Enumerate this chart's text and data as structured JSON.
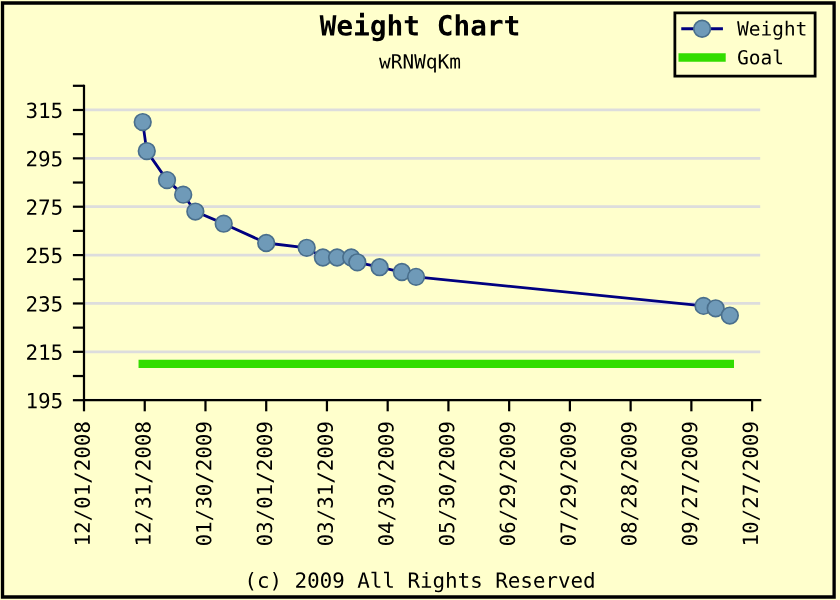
{
  "chart_data": {
    "type": "line",
    "title": "Weight Chart",
    "subtitle": "wRNWqKm",
    "annotations": [
      "(c) 2009 All Rights Reserved"
    ],
    "series": [
      {
        "name": "Weight",
        "color": "#000080",
        "marker": "circle",
        "x": [
          "2008-12-30",
          "2009-01-01",
          "2009-01-11",
          "2009-01-19",
          "2009-01-25",
          "2009-02-08",
          "2009-03-01",
          "2009-03-21",
          "2009-03-29",
          "2009-04-05",
          "2009-04-12",
          "2009-04-15",
          "2009-04-26",
          "2009-05-07",
          "2009-05-14",
          "2009-10-03",
          "2009-10-09",
          "2009-10-16"
        ],
        "values": [
          310,
          298,
          286,
          280,
          273,
          268,
          260,
          258,
          254,
          254,
          254,
          252,
          250,
          248,
          246,
          234,
          233,
          230
        ]
      },
      {
        "name": "Goal",
        "color": "#33dd00",
        "x": [
          "2008-12-30",
          "2009-10-16"
        ],
        "values": [
          210,
          210
        ]
      }
    ],
    "xlim": [
      "2008-12-01",
      "2009-10-31"
    ],
    "xticks": [
      {
        "value": "2008-12-01",
        "label": "12/01/2008"
      },
      {
        "value": "2008-12-31",
        "label": "12/31/2008"
      },
      {
        "value": "2009-01-30",
        "label": "01/30/2009"
      },
      {
        "value": "2009-03-01",
        "label": "03/01/2009"
      },
      {
        "value": "2009-03-31",
        "label": "03/31/2009"
      },
      {
        "value": "2009-04-30",
        "label": "04/30/2009"
      },
      {
        "value": "2009-05-30",
        "label": "05/30/2009"
      },
      {
        "value": "2009-06-29",
        "label": "06/29/2009"
      },
      {
        "value": "2009-07-29",
        "label": "07/29/2009"
      },
      {
        "value": "2009-08-28",
        "label": "08/28/2009"
      },
      {
        "value": "2009-09-27",
        "label": "09/27/2009"
      },
      {
        "value": "2009-10-27",
        "label": "10/27/2009"
      }
    ],
    "ylim": [
      195,
      325
    ],
    "yticks": [
      195,
      {
        "value": 205,
        "label": null
      },
      215,
      {
        "value": 225,
        "label": null
      },
      235,
      {
        "value": 245,
        "label": null
      },
      255,
      {
        "value": 265,
        "label": null
      },
      275,
      {
        "value": 285,
        "label": null
      },
      295,
      {
        "value": 305,
        "label": null
      },
      315,
      {
        "value": 325,
        "label": null
      }
    ],
    "grid": "y",
    "legend": "top right"
  }
}
